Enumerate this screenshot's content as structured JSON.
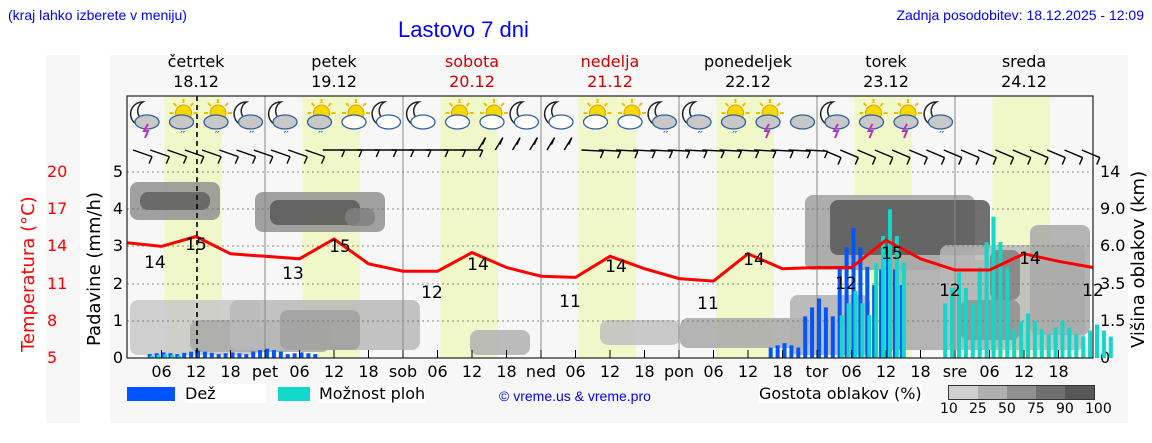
{
  "header": {
    "region_hint": "(kraj lahko izberete v meniju)",
    "title": "Lastovo 7 dni",
    "last_update": "Zadnja posodobitev: 18.12.2025 - 12:09"
  },
  "days": [
    {
      "name": "četrtek",
      "date": "18.12",
      "weekend": false
    },
    {
      "name": "petek",
      "date": "19.12",
      "weekend": false
    },
    {
      "name": "sobota",
      "date": "20.12",
      "weekend": true
    },
    {
      "name": "nedelja",
      "date": "21.12",
      "weekend": true
    },
    {
      "name": "ponedeljek",
      "date": "22.12",
      "weekend": false
    },
    {
      "name": "torek",
      "date": "23.12",
      "weekend": false
    },
    {
      "name": "sreda",
      "date": "24.12",
      "weekend": false
    }
  ],
  "axes": {
    "temperature_label": "Temperatura (°C)",
    "precip_label": "Padavine (mm/h)",
    "cloud_height_label": "Višina oblakov (km)",
    "temperature_ticks": [
      "20",
      "17",
      "14",
      "11",
      "8",
      "5"
    ],
    "precip_ticks": [
      "5",
      "4",
      "3",
      "2",
      "1",
      "0"
    ],
    "cloud_height_ticks": [
      "14",
      "9.0",
      "6.0",
      "3.5",
      "1.5",
      "0"
    ],
    "x_ticks": [
      "06",
      "12",
      "18",
      "pet",
      "06",
      "12",
      "18",
      "sob",
      "06",
      "12",
      "18",
      "ned",
      "06",
      "12",
      "18",
      "pon",
      "06",
      "12",
      "18",
      "tor",
      "06",
      "12",
      "18",
      "sre",
      "06",
      "12",
      "18"
    ]
  },
  "legend": {
    "rain_label": "Dež",
    "shower_label": "Možnost ploh",
    "credit": "© vreme.us & vreme.pro",
    "cloud_density_label": "Gostota oblakov (%)",
    "cloud_density_ticks": [
      "10",
      "25",
      "50",
      "75",
      "90",
      "100"
    ]
  },
  "colors": {
    "temperature": "#ff0000",
    "rain": "#0055ff",
    "shower": "#11d8c8",
    "daylight": "#f0f7c8",
    "weekend_day": "#d40000",
    "link_blue": "#0000ff",
    "cloud_shades": [
      "#d0d0d0",
      "#b0b0b0",
      "#909090",
      "#707070",
      "#585858"
    ]
  },
  "weather_icons": [
    "moon-cloud-lightning",
    "sun-cloud-rain",
    "sun-cloud-rain",
    "moon-cloud-rain",
    "moon-cloud-rain",
    "sun-cloud-rain",
    "sun-cloud",
    "moon-cloud",
    "moon-cloud",
    "sun-cloud",
    "sun-cloud",
    "moon-cloud",
    "moon-cloud",
    "sun-cloud",
    "sun-cloud",
    "moon-cloud-rain",
    "moon-cloud-rain",
    "sun-cloud-rain",
    "sun-cloud-lightning",
    "cloudy",
    "moon-cloud-lightning",
    "sun-cloud-lightning",
    "sun-cloud-lightning",
    "moon-cloud-rain"
  ],
  "chart_data": {
    "type": "line",
    "title": "Lastovo 7 dni",
    "xlabel": "",
    "ylabel": "Temperatura (°C)",
    "ylim": [
      5,
      20
    ],
    "secondary_axes": {
      "precipitation_mm_h": {
        "label": "Padavine (mm/h)",
        "range": [
          0,
          5
        ]
      },
      "cloud_height_km": {
        "label": "Višina oblakov (km)",
        "ticks": [
          0,
          1.5,
          3.5,
          6.0,
          9.0,
          14
        ]
      }
    },
    "x_hours": [
      0,
      6,
      12,
      18,
      24,
      30,
      36,
      42,
      48,
      54,
      60,
      66,
      72,
      78,
      84,
      90,
      96,
      102,
      108,
      114,
      120,
      126,
      132,
      138,
      144,
      150,
      156,
      162,
      168
    ],
    "series": [
      {
        "name": "Temperatura",
        "values": [
          14.3,
          14.0,
          14.8,
          13.4,
          13.2,
          13.0,
          14.6,
          12.6,
          12.0,
          12.0,
          13.5,
          12.3,
          11.6,
          11.5,
          13.2,
          12.2,
          11.4,
          11.2,
          13.4,
          12.2,
          12.3,
          12.3,
          14.5,
          13.0,
          12.1,
          12.1,
          13.4,
          12.8,
          12.3
        ]
      },
      {
        "name": "Dež (mm/h)",
        "values": [
          0,
          0.15,
          0.2,
          0.15,
          0.25,
          0.15,
          0,
          0,
          0,
          0,
          0,
          0,
          0,
          0,
          0,
          0,
          0,
          0,
          0,
          0.4,
          1.6,
          3.5,
          2.8,
          0,
          0,
          0,
          0,
          0,
          0
        ]
      },
      {
        "name": "Možnost ploh (mm/h)",
        "values": [
          0,
          0.1,
          0,
          0,
          0,
          0,
          0,
          0,
          0,
          0,
          0,
          0,
          0,
          0,
          0,
          0,
          0,
          0,
          0,
          0,
          0,
          1.8,
          4.0,
          0,
          2.3,
          3.8,
          1.2,
          1.0,
          0.9
        ]
      }
    ],
    "annotations": [
      {
        "label": "14",
        "day": "18.12",
        "type": "min"
      },
      {
        "label": "15",
        "day": "18.12",
        "type": "max"
      },
      {
        "label": "13",
        "day": "19.12",
        "type": "min"
      },
      {
        "label": "15",
        "day": "19.12",
        "type": "max"
      },
      {
        "label": "12",
        "day": "20.12",
        "type": "min"
      },
      {
        "label": "14",
        "day": "20.12",
        "type": "max"
      },
      {
        "label": "11",
        "day": "21.12",
        "type": "min"
      },
      {
        "label": "14",
        "day": "21.12",
        "type": "max"
      },
      {
        "label": "11",
        "day": "22.12",
        "type": "min"
      },
      {
        "label": "14",
        "day": "22.12",
        "type": "max"
      },
      {
        "label": "12",
        "day": "23.12",
        "type": "min"
      },
      {
        "label": "15",
        "day": "23.12",
        "type": "max"
      },
      {
        "label": "12",
        "day": "24.12",
        "type": "min"
      },
      {
        "label": "14",
        "day": "24.12",
        "type": "max"
      },
      {
        "label": "12",
        "day": "24.12",
        "type": "end"
      }
    ],
    "legend": [
      "Dež",
      "Možnost ploh",
      "Gostota oblakov (%)"
    ],
    "grid": true,
    "now_marker": "18.12 12:09"
  }
}
